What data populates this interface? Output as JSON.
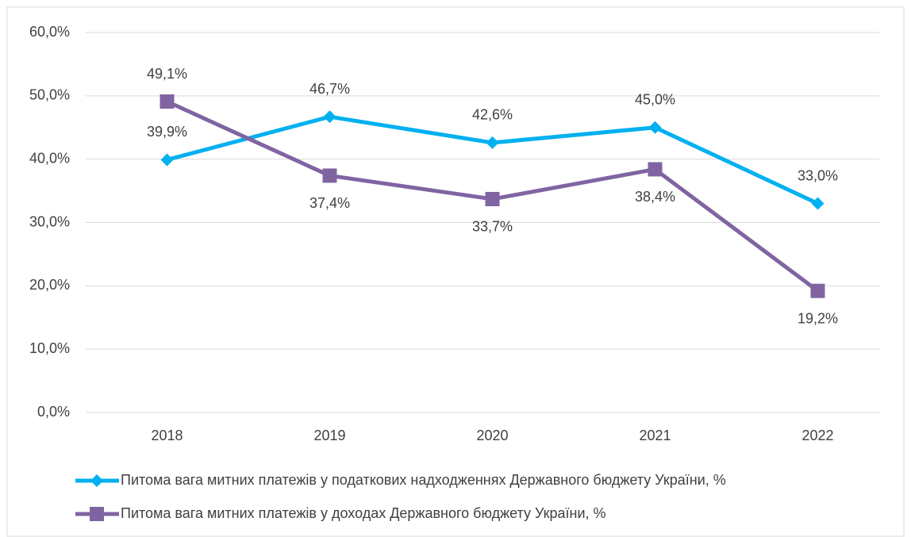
{
  "chart_data": {
    "type": "line",
    "categories": [
      "2018",
      "2019",
      "2020",
      "2021",
      "2022"
    ],
    "series": [
      {
        "name": "Питома вага митних платежів у податкових надходженнях Державного бюджету України, %",
        "color": "#00b0f0",
        "marker": "diamond",
        "values": [
          39.9,
          46.7,
          42.6,
          45.0,
          33.0
        ],
        "value_labels": [
          "39,9%",
          "46,7%",
          "42,6%",
          "45,0%",
          "33,0%"
        ]
      },
      {
        "name": "Питома вага митних платежів у доходах Державного бюджету України, %",
        "color": "#8064a2",
        "marker": "square",
        "values": [
          49.1,
          37.4,
          33.7,
          38.4,
          19.2
        ],
        "value_labels": [
          "49,1%",
          "37,4%",
          "33,7%",
          "38,4%",
          "19,2%"
        ]
      }
    ],
    "ylim": [
      0,
      60
    ],
    "yticks": [
      {
        "value": 0,
        "label": "0,0%"
      },
      {
        "value": 10,
        "label": "10,0%"
      },
      {
        "value": 20,
        "label": "20,0%"
      },
      {
        "value": 30,
        "label": "30,0%"
      },
      {
        "value": 40,
        "label": "40,0%"
      },
      {
        "value": 50,
        "label": "50,0%"
      },
      {
        "value": 60,
        "label": "60,0%"
      }
    ],
    "grid": true,
    "legend": "bottom"
  }
}
